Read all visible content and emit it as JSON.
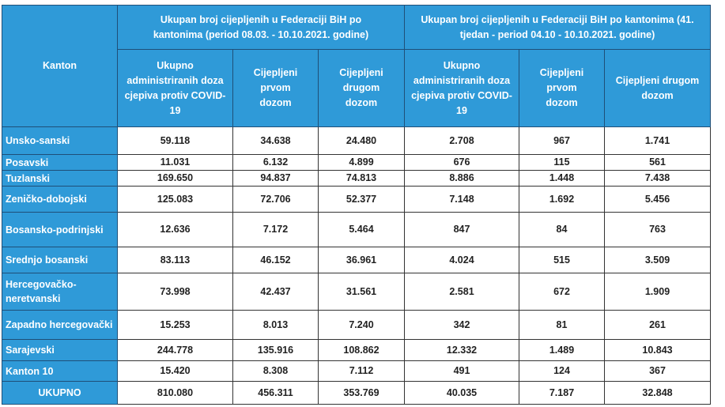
{
  "header": {
    "kanton": "Kanton",
    "group1": "Ukupan broj cijepljenih u Federaciji BiH po kantonima (period 08.03. - 10.10.2021. godine)",
    "group2": "Ukupan broj cijepljenih u Federaciji BiH po kantonima (41. tjedan - period 04.10 - 10.10.2021. godine)",
    "columns": [
      "Ukupno administriranih doza cjepiva protiv COVID-19",
      "Cijepljeni prvom dozom",
      "Cijepljeni drugom dozom",
      "Ukupno administriranih doza cjepiva protiv COVID-19",
      "Cijepljeni prvom dozom",
      "Cijepljeni drugom dozom"
    ]
  },
  "rows": [
    {
      "kanton": "Unsko-sanski",
      "v": [
        "59.118",
        "34.638",
        "24.480",
        "2.708",
        "967",
        "1.741"
      ]
    },
    {
      "kanton": "Posavski",
      "v": [
        "11.031",
        "6.132",
        "4.899",
        "676",
        "115",
        "561"
      ]
    },
    {
      "kanton": "Tuzlanski",
      "v": [
        "169.650",
        "94.837",
        "74.813",
        "8.886",
        "1.448",
        "7.438"
      ]
    },
    {
      "kanton": "Zeničko-dobojski",
      "v": [
        "125.083",
        "72.706",
        "52.377",
        "7.148",
        "1.692",
        "5.456"
      ]
    },
    {
      "kanton": "Bosansko-podrinjski",
      "v": [
        "12.636",
        "7.172",
        "5.464",
        "847",
        "84",
        "763"
      ]
    },
    {
      "kanton": "Srednjo bosanski",
      "v": [
        "83.113",
        "46.152",
        "36.961",
        "4.024",
        "515",
        "3.509"
      ]
    },
    {
      "kanton": "Hercegovačko-neretvanski",
      "v": [
        "73.998",
        "42.437",
        "31.561",
        "2.581",
        "672",
        "1.909"
      ]
    },
    {
      "kanton": "Zapadno hercegovački",
      "v": [
        "15.253",
        "8.013",
        "7.240",
        "342",
        "81",
        "261"
      ]
    },
    {
      "kanton": "Sarajevski",
      "v": [
        "244.778",
        "135.916",
        "108.862",
        "12.332",
        "1.489",
        "10.843"
      ]
    },
    {
      "kanton": "Kanton 10",
      "v": [
        "15.420",
        "8.308",
        "7.112",
        "491",
        "124",
        "367"
      ]
    },
    {
      "kanton": "UKUPNO",
      "v": [
        "810.080",
        "456.311",
        "353.769",
        "40.035",
        "7.187",
        "32.848"
      ]
    }
  ],
  "colors": {
    "header_bg": "#2f9ad8",
    "header_text": "#ffffff"
  }
}
